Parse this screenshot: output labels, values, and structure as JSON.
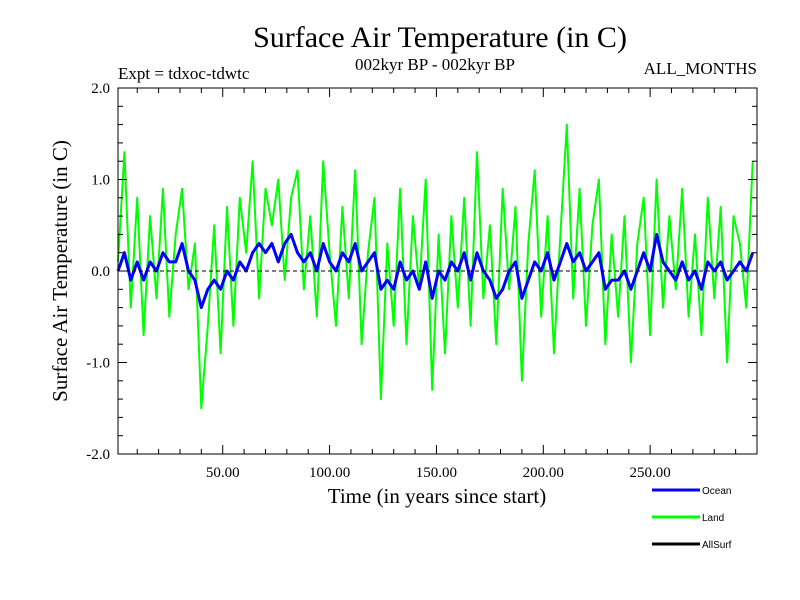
{
  "chart_data": {
    "type": "line",
    "title": "Surface Air Temperature (in C)",
    "subtitle_left": "Expt = tdxoc-tdwtc",
    "subtitle_center": "002kyr BP - 002kyr BP",
    "subtitle_right": "ALL_MONTHS",
    "xlabel": "Time (in years since start)",
    "ylabel": "Surface Air Temperature (in C)",
    "xlim": [
      1,
      300
    ],
    "ylim": [
      -2.0,
      2.0
    ],
    "xticks": [
      50,
      100,
      150,
      200,
      250
    ],
    "xtick_labels": [
      "50.00",
      "100.00",
      "150.00",
      "200.00",
      "250.00"
    ],
    "yticks": [
      -2.0,
      -1.0,
      0.0,
      1.0,
      2.0
    ],
    "ytick_labels": [
      "-2.0",
      "-1.0",
      "0.0",
      "1.0",
      "2.0"
    ],
    "grid": false,
    "zero_line": true,
    "legend_position": "bottom-right",
    "series": [
      {
        "name": "Land",
        "color": "#00ff00",
        "x": [
          1,
          4,
          7,
          10,
          13,
          16,
          19,
          22,
          25,
          28,
          31,
          34,
          37,
          40,
          43,
          46,
          49,
          52,
          55,
          58,
          61,
          64,
          67,
          70,
          73,
          76,
          79,
          82,
          85,
          88,
          91,
          94,
          97,
          100,
          103,
          106,
          109,
          112,
          115,
          118,
          121,
          124,
          127,
          130,
          133,
          136,
          139,
          142,
          145,
          148,
          151,
          154,
          157,
          160,
          163,
          166,
          169,
          172,
          175,
          178,
          181,
          184,
          187,
          190,
          193,
          196,
          199,
          202,
          205,
          208,
          211,
          214,
          217,
          220,
          223,
          226,
          229,
          232,
          235,
          238,
          241,
          244,
          247,
          250,
          253,
          256,
          259,
          262,
          265,
          268,
          271,
          274,
          277,
          280,
          283,
          286,
          289,
          292,
          295,
          298
        ],
        "values": [
          0.1,
          1.3,
          -0.4,
          0.8,
          -0.7,
          0.6,
          -0.3,
          0.9,
          -0.5,
          0.4,
          0.9,
          -0.2,
          0.3,
          -1.5,
          -0.6,
          0.5,
          -0.9,
          0.7,
          -0.6,
          0.8,
          0.2,
          1.2,
          -0.3,
          0.9,
          0.5,
          1.0,
          -0.1,
          0.8,
          1.1,
          -0.2,
          0.6,
          -0.5,
          1.2,
          0.2,
          -0.6,
          0.7,
          -0.3,
          1.1,
          -0.8,
          0.2,
          0.8,
          -1.4,
          0.3,
          -0.6,
          0.9,
          -0.8,
          0.6,
          -0.2,
          1.0,
          -1.3,
          0.4,
          -0.9,
          0.6,
          -0.4,
          0.8,
          -0.6,
          1.3,
          -0.3,
          0.5,
          -0.8,
          0.9,
          -0.2,
          0.7,
          -1.2,
          0.3,
          1.1,
          -0.5,
          0.6,
          -0.9,
          0.4,
          1.6,
          -0.3,
          0.9,
          -0.6,
          0.5,
          1.0,
          -0.8,
          0.4,
          -0.5,
          0.6,
          -1.0,
          0.3,
          0.8,
          -0.7,
          1.0,
          -0.4,
          0.6,
          -0.2,
          0.9,
          -0.5,
          0.4,
          -0.7,
          0.8,
          -0.3,
          0.7,
          -1.0,
          0.6,
          0.3,
          -0.4,
          1.2
        ]
      },
      {
        "name": "Ocean",
        "color": "#0000ff",
        "x": [
          1,
          4,
          7,
          10,
          13,
          16,
          19,
          22,
          25,
          28,
          31,
          34,
          37,
          40,
          43,
          46,
          49,
          52,
          55,
          58,
          61,
          64,
          67,
          70,
          73,
          76,
          79,
          82,
          85,
          88,
          91,
          94,
          97,
          100,
          103,
          106,
          109,
          112,
          115,
          118,
          121,
          124,
          127,
          130,
          133,
          136,
          139,
          142,
          145,
          148,
          151,
          154,
          157,
          160,
          163,
          166,
          169,
          172,
          175,
          178,
          181,
          184,
          187,
          190,
          193,
          196,
          199,
          202,
          205,
          208,
          211,
          214,
          217,
          220,
          223,
          226,
          229,
          232,
          235,
          238,
          241,
          244,
          247,
          250,
          253,
          256,
          259,
          262,
          265,
          268,
          271,
          274,
          277,
          280,
          283,
          286,
          289,
          292,
          295,
          298
        ],
        "values": [
          0.0,
          0.2,
          -0.1,
          0.1,
          -0.1,
          0.1,
          0.0,
          0.2,
          0.1,
          0.1,
          0.3,
          0.0,
          -0.1,
          -0.4,
          -0.2,
          -0.1,
          -0.2,
          0.0,
          -0.1,
          0.1,
          0.0,
          0.2,
          0.3,
          0.2,
          0.3,
          0.1,
          0.3,
          0.4,
          0.2,
          0.1,
          0.2,
          0.0,
          0.3,
          0.1,
          0.0,
          0.2,
          0.1,
          0.3,
          0.0,
          0.1,
          0.2,
          -0.2,
          -0.1,
          -0.2,
          0.1,
          -0.1,
          0.0,
          -0.2,
          0.1,
          -0.3,
          0.0,
          -0.1,
          0.1,
          0.0,
          0.2,
          -0.1,
          0.2,
          0.0,
          -0.1,
          -0.3,
          -0.2,
          0.0,
          0.1,
          -0.3,
          -0.1,
          0.1,
          0.0,
          0.2,
          -0.1,
          0.1,
          0.3,
          0.1,
          0.2,
          0.0,
          0.1,
          0.2,
          -0.2,
          -0.1,
          -0.1,
          0.0,
          -0.2,
          0.0,
          0.2,
          0.0,
          0.4,
          0.1,
          0.0,
          -0.1,
          0.1,
          -0.1,
          0.0,
          -0.2,
          0.1,
          0.0,
          0.1,
          -0.1,
          0.0,
          0.1,
          0.0,
          0.2
        ]
      },
      {
        "name": "AllSurf",
        "color": "#000000",
        "x": [],
        "values": []
      }
    ]
  }
}
